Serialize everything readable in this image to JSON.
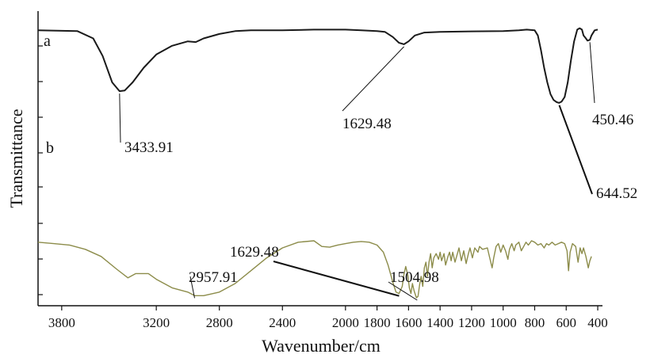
{
  "chart_data": {
    "type": "line",
    "xlabel": "Wavenumber/cm",
    "ylabel": "Transmittance",
    "xlim": [
      3950,
      370
    ],
    "x_reversed": true,
    "x_ticks": [
      3800,
      3200,
      2800,
      2400,
      2000,
      1800,
      1600,
      1400,
      1200,
      1000,
      800,
      600,
      400
    ],
    "x_tick_labels": [
      "3800",
      "3200",
      "2800",
      "2400",
      "2000",
      "1800",
      "1600",
      "1400",
      "1200",
      "1000",
      "800",
      "600",
      "400"
    ],
    "grid": false,
    "legend": "none",
    "series": [
      {
        "name": "a",
        "color": "#1a1a1a",
        "points": [
          [
            3950,
            0.955
          ],
          [
            3700,
            0.95
          ],
          [
            3600,
            0.9
          ],
          [
            3540,
            0.78
          ],
          [
            3480,
            0.6
          ],
          [
            3433,
            0.54
          ],
          [
            3400,
            0.545
          ],
          [
            3350,
            0.6
          ],
          [
            3280,
            0.7
          ],
          [
            3200,
            0.79
          ],
          [
            3100,
            0.85
          ],
          [
            3000,
            0.88
          ],
          [
            2950,
            0.875
          ],
          [
            2900,
            0.9
          ],
          [
            2800,
            0.93
          ],
          [
            2700,
            0.95
          ],
          [
            2600,
            0.955
          ],
          [
            2400,
            0.955
          ],
          [
            2200,
            0.96
          ],
          [
            2000,
            0.96
          ],
          [
            1900,
            0.955
          ],
          [
            1800,
            0.95
          ],
          [
            1750,
            0.945
          ],
          [
            1700,
            0.91
          ],
          [
            1660,
            0.87
          ],
          [
            1629,
            0.86
          ],
          [
            1600,
            0.88
          ],
          [
            1560,
            0.92
          ],
          [
            1500,
            0.94
          ],
          [
            1400,
            0.945
          ],
          [
            1200,
            0.948
          ],
          [
            1000,
            0.95
          ],
          [
            900,
            0.955
          ],
          [
            850,
            0.96
          ],
          [
            800,
            0.955
          ],
          [
            780,
            0.92
          ],
          [
            760,
            0.82
          ],
          [
            740,
            0.7
          ],
          [
            720,
            0.6
          ],
          [
            700,
            0.52
          ],
          [
            680,
            0.48
          ],
          [
            660,
            0.465
          ],
          [
            645,
            0.46
          ],
          [
            630,
            0.468
          ],
          [
            610,
            0.5
          ],
          [
            590,
            0.6
          ],
          [
            570,
            0.75
          ],
          [
            550,
            0.88
          ],
          [
            530,
            0.96
          ],
          [
            515,
            0.97
          ],
          [
            500,
            0.96
          ],
          [
            490,
            0.92
          ],
          [
            475,
            0.9
          ],
          [
            465,
            0.885
          ],
          [
            450,
            0.89
          ],
          [
            440,
            0.92
          ],
          [
            420,
            0.955
          ],
          [
            400,
            0.96
          ]
        ]
      },
      {
        "name": "b",
        "color": "#8c8c4a",
        "points": [
          [
            3950,
            0.44
          ],
          [
            3850,
            0.43
          ],
          [
            3750,
            0.42
          ],
          [
            3650,
            0.39
          ],
          [
            3550,
            0.34
          ],
          [
            3450,
            0.25
          ],
          [
            3380,
            0.19
          ],
          [
            3330,
            0.22
          ],
          [
            3250,
            0.22
          ],
          [
            3200,
            0.18
          ],
          [
            3100,
            0.12
          ],
          [
            3000,
            0.09
          ],
          [
            2957,
            0.065
          ],
          [
            2900,
            0.065
          ],
          [
            2800,
            0.09
          ],
          [
            2700,
            0.15
          ],
          [
            2600,
            0.24
          ],
          [
            2500,
            0.33
          ],
          [
            2400,
            0.4
          ],
          [
            2300,
            0.44
          ],
          [
            2200,
            0.45
          ],
          [
            2150,
            0.41
          ],
          [
            2100,
            0.405
          ],
          [
            2050,
            0.42
          ],
          [
            2000,
            0.43
          ],
          [
            1950,
            0.44
          ],
          [
            1900,
            0.445
          ],
          [
            1850,
            0.44
          ],
          [
            1800,
            0.42
          ],
          [
            1760,
            0.37
          ],
          [
            1730,
            0.28
          ],
          [
            1700,
            0.16
          ],
          [
            1680,
            0.09
          ],
          [
            1660,
            0.08
          ],
          [
            1640,
            0.13
          ],
          [
            1630,
            0.21
          ],
          [
            1618,
            0.27
          ],
          [
            1605,
            0.21
          ],
          [
            1595,
            0.12
          ],
          [
            1585,
            0.08
          ],
          [
            1575,
            0.15
          ],
          [
            1565,
            0.1
          ],
          [
            1550,
            0.05
          ],
          [
            1540,
            0.06
          ],
          [
            1530,
            0.14
          ],
          [
            1520,
            0.2
          ],
          [
            1510,
            0.13
          ],
          [
            1500,
            0.26
          ],
          [
            1490,
            0.3
          ],
          [
            1480,
            0.2
          ],
          [
            1470,
            0.3
          ],
          [
            1460,
            0.36
          ],
          [
            1450,
            0.26
          ],
          [
            1440,
            0.33
          ],
          [
            1425,
            0.36
          ],
          [
            1410,
            0.32
          ],
          [
            1400,
            0.37
          ],
          [
            1390,
            0.31
          ],
          [
            1375,
            0.36
          ],
          [
            1365,
            0.28
          ],
          [
            1350,
            0.34
          ],
          [
            1340,
            0.37
          ],
          [
            1330,
            0.31
          ],
          [
            1320,
            0.37
          ],
          [
            1305,
            0.3
          ],
          [
            1290,
            0.36
          ],
          [
            1280,
            0.4
          ],
          [
            1265,
            0.31
          ],
          [
            1250,
            0.38
          ],
          [
            1235,
            0.29
          ],
          [
            1220,
            0.36
          ],
          [
            1210,
            0.4
          ],
          [
            1195,
            0.33
          ],
          [
            1180,
            0.4
          ],
          [
            1160,
            0.37
          ],
          [
            1150,
            0.41
          ],
          [
            1130,
            0.39
          ],
          [
            1100,
            0.4
          ],
          [
            1085,
            0.33
          ],
          [
            1070,
            0.26
          ],
          [
            1060,
            0.33
          ],
          [
            1045,
            0.41
          ],
          [
            1030,
            0.43
          ],
          [
            1015,
            0.37
          ],
          [
            1000,
            0.42
          ],
          [
            985,
            0.38
          ],
          [
            970,
            0.32
          ],
          [
            960,
            0.39
          ],
          [
            945,
            0.43
          ],
          [
            930,
            0.38
          ],
          [
            920,
            0.42
          ],
          [
            900,
            0.44
          ],
          [
            885,
            0.38
          ],
          [
            870,
            0.41
          ],
          [
            855,
            0.44
          ],
          [
            840,
            0.42
          ],
          [
            820,
            0.45
          ],
          [
            800,
            0.44
          ],
          [
            780,
            0.42
          ],
          [
            760,
            0.43
          ],
          [
            740,
            0.4
          ],
          [
            725,
            0.43
          ],
          [
            710,
            0.42
          ],
          [
            690,
            0.44
          ],
          [
            670,
            0.42
          ],
          [
            650,
            0.43
          ],
          [
            630,
            0.44
          ],
          [
            610,
            0.43
          ],
          [
            595,
            0.38
          ],
          [
            585,
            0.24
          ],
          [
            575,
            0.37
          ],
          [
            560,
            0.43
          ],
          [
            540,
            0.41
          ],
          [
            525,
            0.3
          ],
          [
            512,
            0.4
          ],
          [
            500,
            0.36
          ],
          [
            490,
            0.4
          ],
          [
            475,
            0.34
          ],
          [
            460,
            0.26
          ],
          [
            450,
            0.31
          ],
          [
            440,
            0.34
          ]
        ]
      }
    ],
    "series_labels": [
      {
        "series": "a",
        "text": "a"
      },
      {
        "series": "b",
        "text": "b"
      }
    ],
    "annotations": [
      {
        "series": "a",
        "text": "3433.91",
        "point": [
          3433,
          0.54
        ]
      },
      {
        "series": "a",
        "text": "1629.48",
        "point": [
          1629,
          0.86
        ]
      },
      {
        "series": "a",
        "text": "450.46",
        "point": [
          450,
          0.89
        ]
      },
      {
        "series": "a",
        "text": "644.52",
        "point": [
          644,
          0.46
        ]
      },
      {
        "series": "b",
        "text": "2957.91",
        "point": [
          2957,
          0.065
        ]
      },
      {
        "series": "b",
        "text": "1629.48",
        "point": [
          1660,
          0.08
        ]
      },
      {
        "series": "b",
        "text": "1504.98",
        "point": [
          1545,
          0.05
        ]
      }
    ]
  }
}
